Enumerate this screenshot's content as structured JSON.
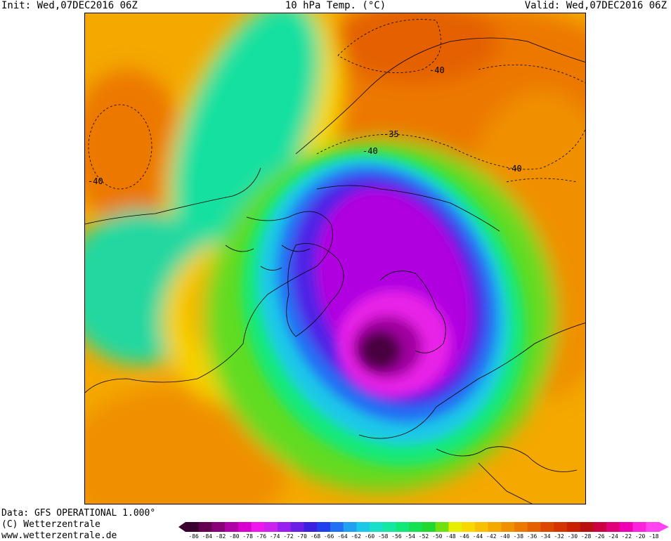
{
  "header": {
    "init": "Init: Wed,07DEC2016 06Z",
    "title": "10 hPa Temp. (°C)",
    "valid": "Valid: Wed,07DEC2016 06Z"
  },
  "footer": {
    "data": "Data: GFS OPERATIONAL 1.000°",
    "copyright": "(C) Wetterzentrale",
    "url": "www.wetterzentrale.de"
  },
  "map": {
    "contour_labels": [
      "-40",
      "-40",
      "-40",
      "-35",
      "-40"
    ]
  },
  "legend": {
    "ticks": [
      "-86",
      "-84",
      "-82",
      "-80",
      "-78",
      "-76",
      "-74",
      "-72",
      "-70",
      "-68",
      "-66",
      "-64",
      "-62",
      "-60",
      "-58",
      "-56",
      "-54",
      "-52",
      "-50",
      "-48",
      "-46",
      "-44",
      "-42",
      "-40",
      "-38",
      "-36",
      "-34",
      "-32",
      "-30",
      "-28",
      "-26",
      "-24",
      "-22",
      "-20",
      "-18"
    ],
    "colors": [
      "#3a0030",
      "#620052",
      "#880078",
      "#b000a8",
      "#d800d0",
      "#ee18ee",
      "#cc22ee",
      "#9a1ef0",
      "#6a1ee6",
      "#3c20e0",
      "#2040f0",
      "#2070f4",
      "#20a0f0",
      "#1cc8e8",
      "#18e0c8",
      "#14e8a0",
      "#10e878",
      "#14e050",
      "#20d830",
      "#70e010",
      "#e8ee00",
      "#f8d800",
      "#f8c000",
      "#f4a800",
      "#f09000",
      "#ec7800",
      "#e46000",
      "#dc4800",
      "#d43400",
      "#c82000",
      "#b81010",
      "#cc0040",
      "#e0007a",
      "#f000b4",
      "#fa22dc",
      "#ff44f0"
    ]
  }
}
